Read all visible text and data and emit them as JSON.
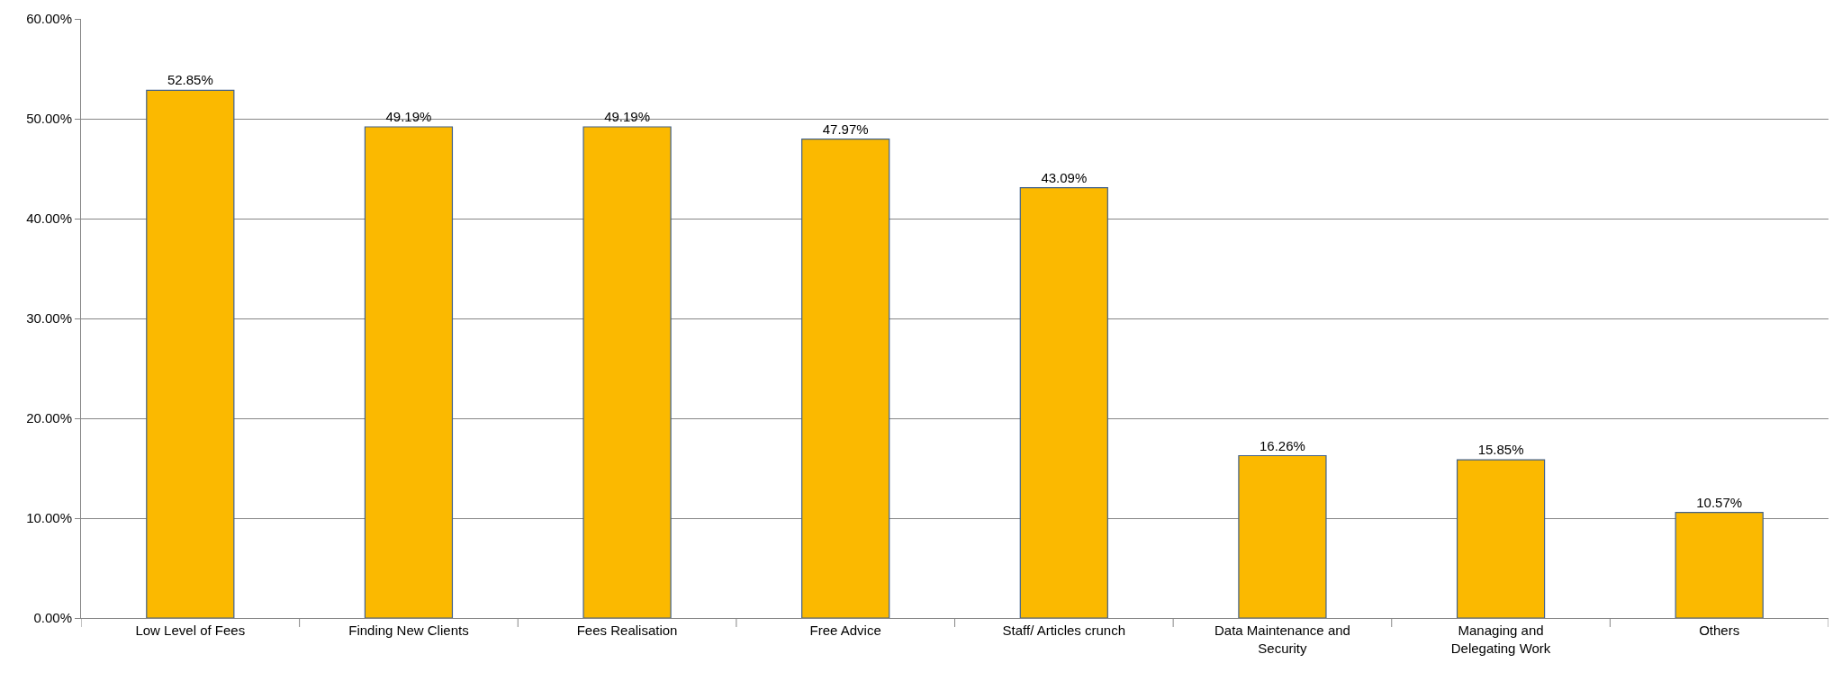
{
  "chart_data": {
    "type": "bar",
    "categories": [
      "Low Level of Fees",
      "Finding New Clients",
      "Fees Realisation",
      "Free Advice",
      "Staff/ Articles crunch",
      "Data Maintenance and Security",
      "Managing and Delegating Work",
      "Others"
    ],
    "values": [
      52.85,
      49.19,
      49.19,
      47.97,
      43.09,
      16.26,
      15.85,
      10.57
    ],
    "value_labels": [
      "52.85%",
      "49.19%",
      "49.19%",
      "47.97%",
      "43.09%",
      "16.26%",
      "15.85%",
      "10.57%"
    ],
    "color": "#fbb900",
    "ylim": [
      0,
      60
    ],
    "yticks": [
      {
        "value": 0,
        "label": "0.00%"
      },
      {
        "value": 10,
        "label": "10.00%"
      },
      {
        "value": 20,
        "label": "20.00%"
      },
      {
        "value": 30,
        "label": "30.00%"
      },
      {
        "value": 40,
        "label": "40.00%"
      },
      {
        "value": 50,
        "label": "50.00%"
      },
      {
        "value": 60,
        "label": "60.00%"
      }
    ],
    "grid": "y",
    "legend": false
  }
}
